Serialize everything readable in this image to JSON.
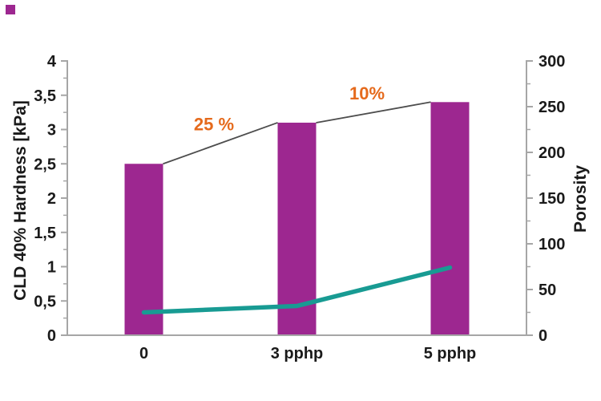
{
  "page": {
    "background": "#ffffff"
  },
  "decor": {
    "corner_mark_color": "#9d2790"
  },
  "chart_data": {
    "type": "combo",
    "subtype": [
      "bar",
      "line"
    ],
    "categories": [
      "0",
      "3 pphp",
      "5 pphp"
    ],
    "series": [
      {
        "name": "CLD 40% Hardness",
        "type": "bar",
        "axis": "left",
        "values": [
          2.5,
          3.1,
          3.4
        ],
        "color": "#9d2790"
      },
      {
        "name": "Porosity",
        "type": "line",
        "axis": "right",
        "values": [
          25,
          32,
          74
        ],
        "color": "#189b93"
      }
    ],
    "left_axis": {
      "title": "CLD 40% Hardness [kPa]",
      "min": 0,
      "max": 4,
      "major_step": 0.5,
      "minor_step": 0.25,
      "tick_labels": [
        "0",
        "0,5",
        "1",
        "1,5",
        "2",
        "2,5",
        "3",
        "3,5",
        "4"
      ]
    },
    "right_axis": {
      "title": "Porosity",
      "min": 0,
      "max": 300,
      "major_step": 50,
      "minor_step": 25,
      "tick_labels": [
        "0",
        "50",
        "100",
        "150",
        "200",
        "250",
        "300"
      ]
    },
    "annotations": [
      {
        "text": "25 %",
        "between": [
          0,
          1
        ]
      },
      {
        "text": "10%",
        "between": [
          1,
          2
        ]
      }
    ],
    "annotation_color": "#e56a1c",
    "connector_color": "#4d4d4d",
    "axis_line_color": "#a6a6a6",
    "text_color": "#1a1a1a",
    "grid": "off",
    "legend": "none"
  }
}
